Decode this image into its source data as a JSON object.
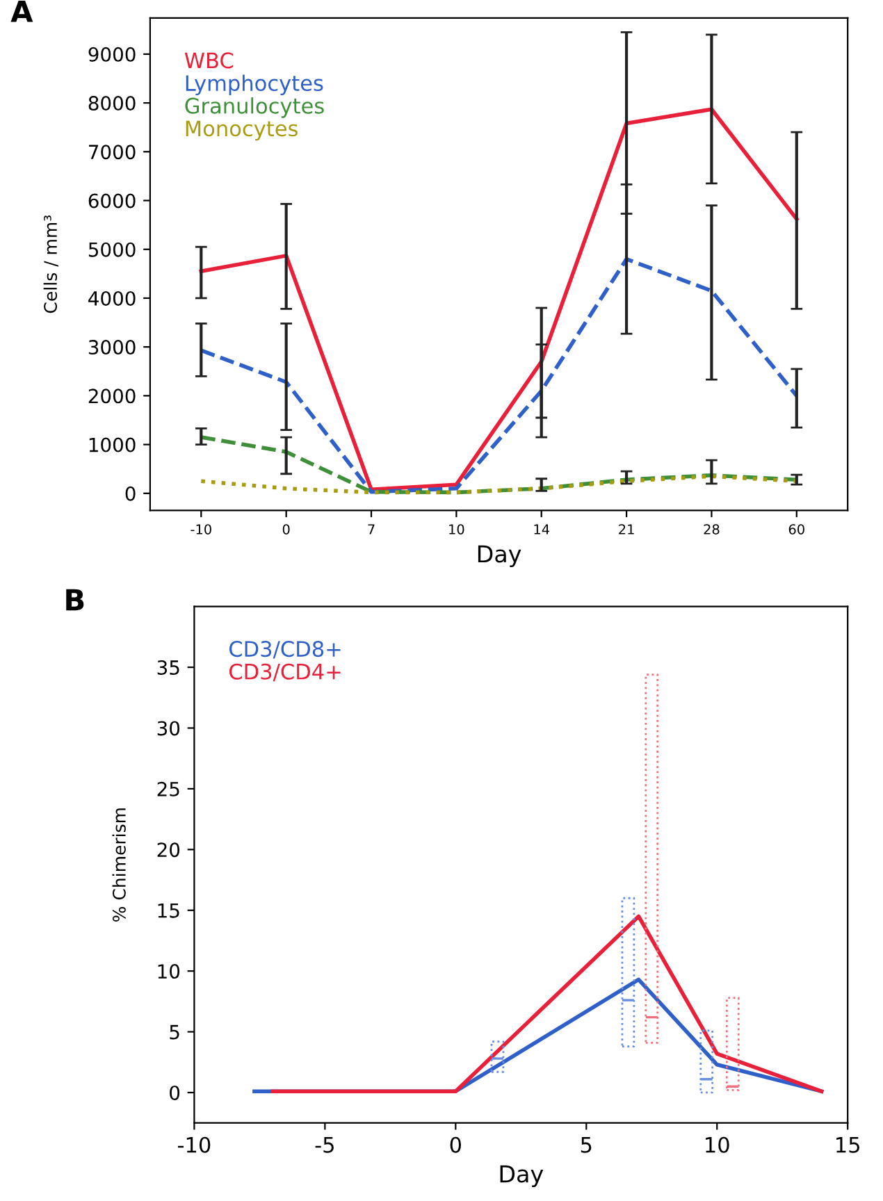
{
  "chart_data": [
    {
      "type": "line",
      "title": "A",
      "xlabel": "Day",
      "ylabel": "Cells / mm³",
      "categories": [
        "-10",
        "0",
        "7",
        "10",
        "14",
        "21",
        "28",
        "60"
      ],
      "ylim": [
        -350,
        9740
      ],
      "yticks": [
        0,
        1000,
        2000,
        3000,
        4000,
        5000,
        6000,
        7000,
        8000,
        9000
      ],
      "grid": false,
      "legend": "top left",
      "series": [
        {
          "name": "WBC",
          "color": "#e8203a",
          "line_style": "solid",
          "values": [
            4550,
            4870,
            80,
            180,
            2700,
            7580,
            7870,
            5620
          ],
          "errors": [
            [
              4000,
              5050
            ],
            [
              3780,
              5930
            ],
            null,
            null,
            [
              1550,
              3800
            ],
            [
              5730,
              9450
            ],
            [
              6350,
              9400
            ],
            [
              3780,
              7400
            ]
          ]
        },
        {
          "name": "Lymphocytes",
          "color": "#2f5fc8",
          "line_style": "dashed",
          "values": [
            2930,
            2280,
            30,
            100,
            2100,
            4800,
            4150,
            2000
          ],
          "errors": [
            [
              2400,
              3480
            ],
            [
              1300,
              3480
            ],
            null,
            null,
            [
              1150,
              3050
            ],
            [
              3270,
              6330
            ],
            [
              2330,
              5900
            ],
            [
              1350,
              2550
            ]
          ]
        },
        {
          "name": "Granulocytes",
          "color": "#3f8f3a",
          "line_style": "dashed",
          "values": [
            1150,
            850,
            30,
            20,
            100,
            280,
            370,
            280
          ],
          "errors": [
            [
              1000,
              1330
            ],
            [
              400,
              1150
            ],
            null,
            null,
            [
              50,
              300
            ],
            [
              200,
              450
            ],
            [
              200,
              680
            ],
            [
              180,
              380
            ]
          ]
        },
        {
          "name": "Monocytes",
          "color": "#a89c10",
          "line_style": "dotted",
          "values": [
            250,
            100,
            20,
            20,
            100,
            250,
            350,
            250
          ]
        }
      ]
    },
    {
      "type": "line",
      "title": "B",
      "xlabel": "Day",
      "ylabel": "% Chimerism",
      "xlim": [
        -10,
        15
      ],
      "xticks": [
        {
          "value": -10,
          "label": "-10"
        },
        {
          "value": -5,
          "label": "-5"
        },
        0,
        5,
        10,
        15
      ],
      "ylim": [
        -2.5,
        40
      ],
      "yticks": [
        0,
        5,
        10,
        15,
        20,
        25,
        30,
        35
      ],
      "grid": false,
      "legend": "top left",
      "series": [
        {
          "name": "CD3/CD8+",
          "color": "#2f5fc8",
          "line_style": "solid",
          "x": [
            -7.7,
            0,
            7,
            10,
            14
          ],
          "values": [
            0.1,
            0.1,
            9.3,
            2.3,
            0.1
          ]
        },
        {
          "name": "CD3/CD4+",
          "color": "#e8203a",
          "line_style": "solid",
          "x": [
            -7,
            0,
            7,
            10,
            14
          ],
          "values": [
            0.1,
            0.1,
            14.5,
            3.2,
            0.1
          ]
        },
        {
          "type": "box",
          "color": "#6a8fe0",
          "x": [
            1.6,
            6.6,
            9.6
          ],
          "boxes": [
            {
              "low": 1.7,
              "q1": 1.7,
              "median": 2.8,
              "q3": 4.2,
              "high": 4.2
            },
            {
              "low": 3.8,
              "q1": 3.8,
              "median": 7.6,
              "q3": 16,
              "high": 16
            },
            {
              "low": 0,
              "q1": 0,
              "median": 1.1,
              "q3": 5.1,
              "high": 5.1
            }
          ]
        },
        {
          "type": "box",
          "color": "#f07080",
          "x": [
            7.5,
            10.6
          ],
          "boxes": [
            {
              "low": 4.1,
              "q1": 4.1,
              "median": 6.2,
              "q3": 34.4,
              "high": 34.4
            },
            {
              "low": 0.2,
              "q1": 0.2,
              "median": 0.5,
              "q3": 7.8,
              "high": 7.8
            }
          ]
        }
      ]
    }
  ]
}
